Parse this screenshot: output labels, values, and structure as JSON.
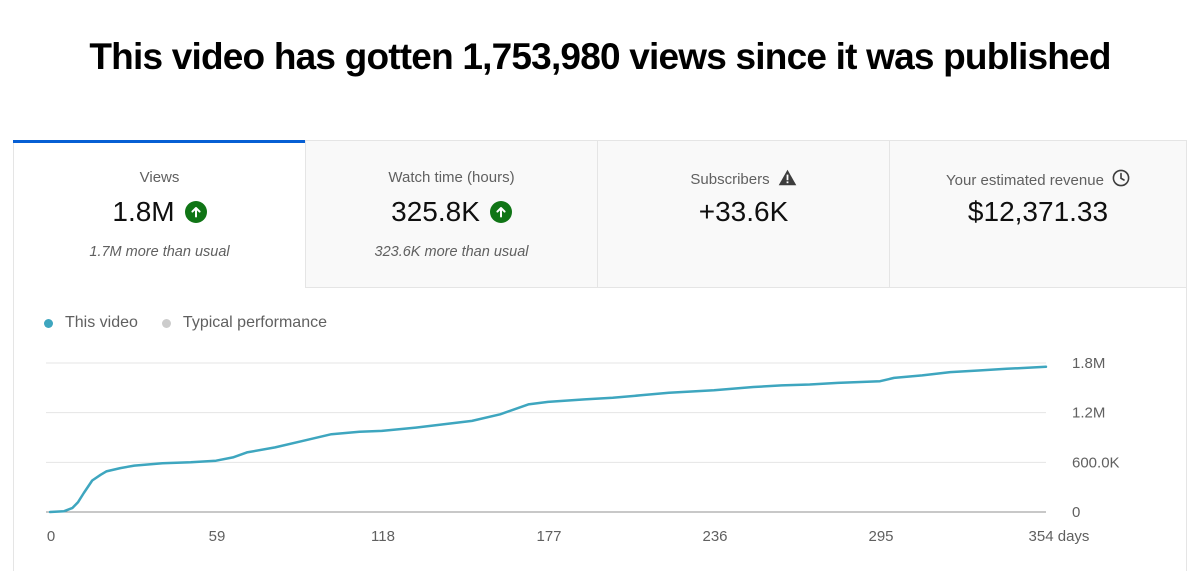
{
  "headline": "This video has gotten 1,753,980 views since it was published",
  "tabs": [
    {
      "label": "Views",
      "value": "1.8M",
      "sub": "1.7M more than usual",
      "icon": "arrow-up-circle-icon"
    },
    {
      "label": "Watch time (hours)",
      "value": "325.8K",
      "sub": "323.6K more than usual",
      "icon": "arrow-up-circle-icon"
    },
    {
      "label": "Subscribers",
      "value": "+33.6K",
      "sub": "",
      "icon": "warning-triangle-icon"
    },
    {
      "label": "Your estimated revenue",
      "value": "$12,371.33",
      "sub": "",
      "icon": "clock-icon"
    }
  ],
  "legend": {
    "this_video": "This video",
    "typical": "Typical performance"
  },
  "colors": {
    "accent": "#065fd4",
    "series": "#3ea6bf",
    "typical": "#cccccc",
    "up": "#107516"
  },
  "chart_data": {
    "type": "line",
    "xlabel": "",
    "ylabel": "",
    "x_ticks": [
      0,
      59,
      118,
      177,
      236,
      295,
      354
    ],
    "x_tick_labels": [
      "0",
      "59",
      "118",
      "177",
      "236",
      "295",
      "354 days"
    ],
    "y_ticks": [
      0,
      600000,
      1200000,
      1800000
    ],
    "y_tick_labels": [
      "0",
      "600.0K",
      "1.2M",
      "1.8M"
    ],
    "xlim": [
      0,
      354
    ],
    "ylim": [
      0,
      1800000
    ],
    "grid": true,
    "legend_position": "top-left",
    "series": [
      {
        "name": "This video",
        "x": [
          0,
          5,
          8,
          10,
          12,
          15,
          18,
          20,
          25,
          30,
          40,
          50,
          59,
          65,
          70,
          80,
          90,
          100,
          110,
          118,
          130,
          140,
          150,
          160,
          170,
          177,
          190,
          200,
          210,
          220,
          236,
          250,
          260,
          270,
          280,
          295,
          300,
          310,
          320,
          330,
          340,
          354
        ],
        "y": [
          0,
          10000,
          50000,
          120000,
          230000,
          380000,
          450000,
          490000,
          530000,
          560000,
          590000,
          600000,
          620000,
          660000,
          720000,
          780000,
          860000,
          940000,
          970000,
          980000,
          1020000,
          1060000,
          1100000,
          1180000,
          1300000,
          1330000,
          1360000,
          1380000,
          1410000,
          1440000,
          1470000,
          1510000,
          1530000,
          1540000,
          1560000,
          1580000,
          1620000,
          1650000,
          1690000,
          1710000,
          1730000,
          1753980
        ]
      }
    ]
  }
}
